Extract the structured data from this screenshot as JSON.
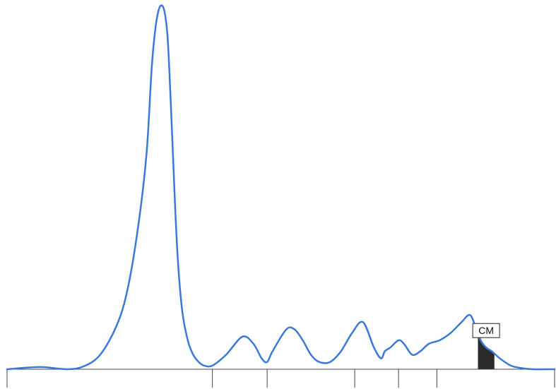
{
  "chart_data": {
    "type": "line",
    "title": "",
    "xlabel": "",
    "ylabel": "",
    "xlim": [
      0,
      100
    ],
    "ylim": [
      0,
      100
    ],
    "grid": false,
    "legend": "none",
    "colors": {
      "trace": "#3b79d9",
      "axis": "#444444",
      "fill": "#2b2b2b"
    },
    "series": [
      {
        "values_x": [
          0,
          6,
          11,
          14,
          17,
          20,
          22,
          24,
          25.5,
          26.5,
          27.5,
          28.5,
          29.3,
          30,
          30.6,
          31.2,
          32,
          33,
          34,
          35,
          36,
          37.5,
          40,
          43,
          45,
          46.5,
          47.5,
          48.5,
          51,
          52.5,
          54,
          55.5,
          57,
          59,
          61,
          63,
          65,
          67,
          68.3,
          69,
          70,
          71.5,
          72.5,
          74,
          75.5,
          77,
          79,
          81,
          83,
          84.5,
          85.5,
          86.5,
          87.5,
          88.5,
          90,
          92,
          94,
          96,
          100
        ],
        "values_y": [
          0,
          0.6,
          0,
          0.8,
          4,
          12,
          22,
          40,
          60,
          85,
          98,
          100,
          92,
          70,
          48,
          30,
          16,
          8,
          4,
          2,
          1,
          1,
          4,
          9,
          7,
          3,
          2,
          5,
          11,
          11,
          8,
          4,
          2,
          2,
          5,
          10,
          13,
          6,
          3,
          5,
          6,
          8,
          7,
          4,
          5,
          7,
          8,
          10,
          13,
          15,
          12,
          8,
          6,
          5,
          3,
          1,
          0.3,
          0,
          0
        ]
      }
    ],
    "x_ticks": [
      0,
      37.5,
      47.5,
      63.5,
      71.5,
      78.5,
      100
    ],
    "shaded_band": {
      "x_start": 86,
      "x_end": 89
    },
    "annotation": {
      "label": "CM",
      "x": 87.5
    }
  }
}
